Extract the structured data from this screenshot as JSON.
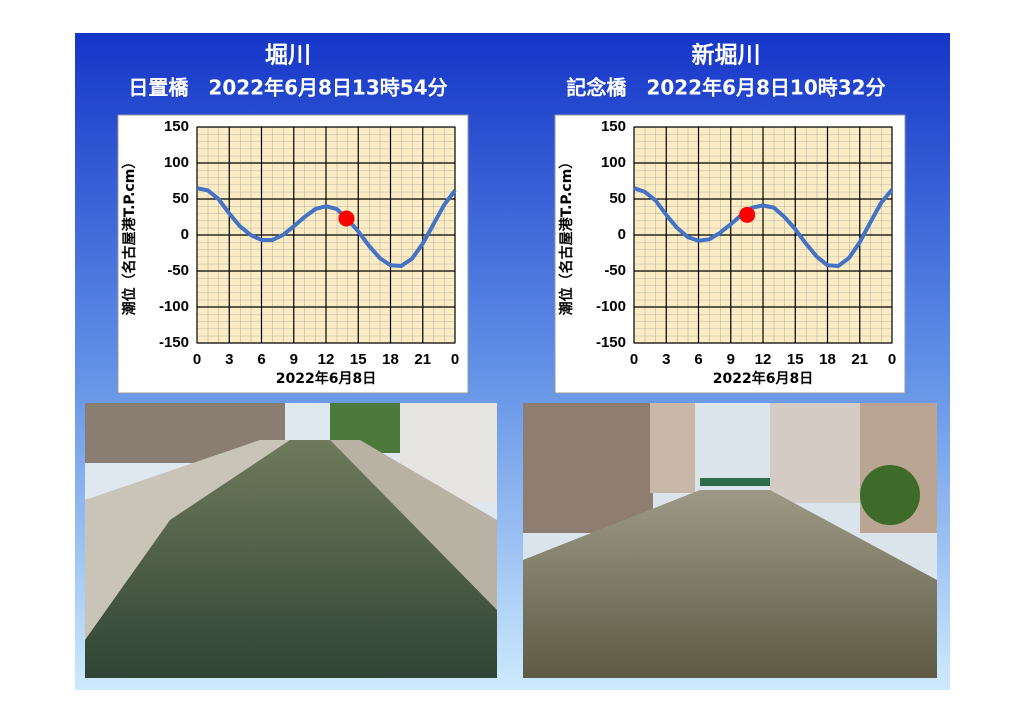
{
  "chart_data": [
    {
      "type": "line",
      "title": "堀川",
      "subtitle": "日置橋　2022年6月8日13時54分",
      "x": [
        0,
        1,
        2,
        3,
        4,
        5,
        6,
        7,
        8,
        9,
        10,
        11,
        12,
        13,
        14,
        15,
        16,
        17,
        18,
        19,
        20,
        21,
        22,
        23,
        24
      ],
      "values": [
        65,
        62,
        50,
        30,
        12,
        0,
        -7,
        -7,
        0,
        12,
        25,
        36,
        40,
        36,
        22,
        5,
        -15,
        -32,
        -42,
        -43,
        -33,
        -12,
        15,
        42,
        62
      ],
      "color": "#4472c4",
      "marker": {
        "x": 13.9,
        "y": 23,
        "color": "#ff0000"
      },
      "xlabel": "2022年6月8日",
      "ylabel": "潮位（名古屋港T.P.cm）",
      "xlim": [
        0,
        24
      ],
      "ylim": [
        -150,
        150
      ],
      "xticks": [
        0,
        3,
        6,
        9,
        12,
        15,
        18,
        21,
        {
          "value": 24,
          "label": "0"
        }
      ],
      "yticks": [
        -150,
        -100,
        -50,
        0,
        50,
        100,
        150
      ],
      "grid": true
    },
    {
      "type": "line",
      "title": "新堀川",
      "subtitle": "記念橋　2022年6月8日10時32分",
      "x": [
        0,
        1,
        2,
        3,
        4,
        5,
        6,
        7,
        8,
        9,
        10,
        11,
        12,
        13,
        14,
        15,
        16,
        17,
        18,
        19,
        20,
        21,
        22,
        23,
        24
      ],
      "values": [
        65,
        60,
        48,
        28,
        10,
        -3,
        -8,
        -6,
        3,
        15,
        28,
        38,
        41,
        38,
        25,
        8,
        -12,
        -30,
        -42,
        -43,
        -32,
        -10,
        18,
        45,
        63
      ],
      "color": "#4472c4",
      "marker": {
        "x": 10.53,
        "y": 28,
        "color": "#ff0000"
      },
      "xlabel": "2022年6月8日",
      "ylabel": "潮位（名古屋港T.P.cm）",
      "xlim": [
        0,
        24
      ],
      "ylim": [
        -150,
        150
      ],
      "xticks": [
        0,
        3,
        6,
        9,
        12,
        15,
        18,
        21,
        {
          "value": 24,
          "label": "0"
        }
      ],
      "yticks": [
        -150,
        -100,
        -50,
        0,
        50,
        100,
        150
      ],
      "grid": true
    }
  ]
}
